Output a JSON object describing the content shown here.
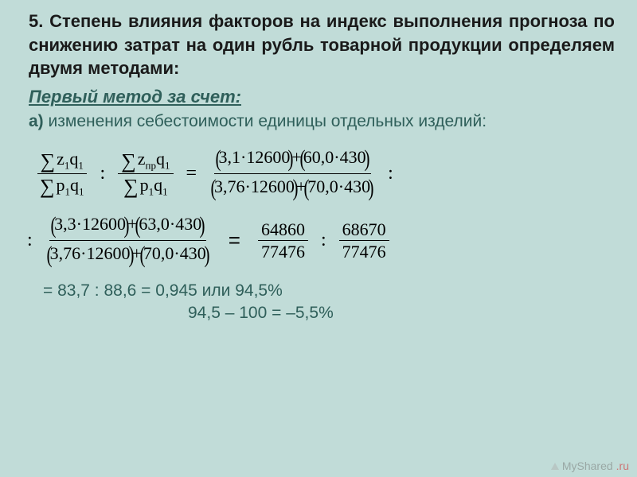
{
  "title": "5. Степень влияния факторов на индекс выполнения прогноза по снижению затрат на один рубль товарной продукции определяем двумя методами:",
  "subtitle": "Первый метод за счет:",
  "item_a": {
    "label": "а)",
    "text": " изменения себестоимости единицы отдельных изделий:"
  },
  "row1": {
    "f1": {
      "num_a": "z",
      "num_b": "q",
      "den_a": "p",
      "den_b": "q",
      "sub1": "1",
      "sub2": "1",
      "sub3": "1",
      "sub4": "1"
    },
    "f2": {
      "num_a": "z",
      "num_sub": "пр",
      "num_b": "q",
      "num_b_sub": "1",
      "den_a": "p",
      "den_b": "q",
      "sub3": "1",
      "sub4": "1"
    },
    "rhs": {
      "num": "(3,1·12600) + (60,0·430)",
      "den": "(3,76·12600) + (70,0·430)"
    }
  },
  "row2": {
    "lhs": {
      "num": "(3,3·12600) + (63,0·430)",
      "den": "(3,76·12600) + (70,0·430)"
    },
    "r1": {
      "num": "64860",
      "den": "77476"
    },
    "r2": {
      "num": "68670",
      "den": "77476"
    }
  },
  "result1": "= 83,7 : 88,6 = 0,945 или 94,5%",
  "result2": "94,5 – 100 = –5,5%",
  "watermark": {
    "text": "MyShared",
    "suffix": ".ru"
  },
  "colors": {
    "background": "#c1dcd8",
    "heading": "#1a1a1a",
    "bodytext": "#2f5f5a",
    "formula": "#000000"
  }
}
